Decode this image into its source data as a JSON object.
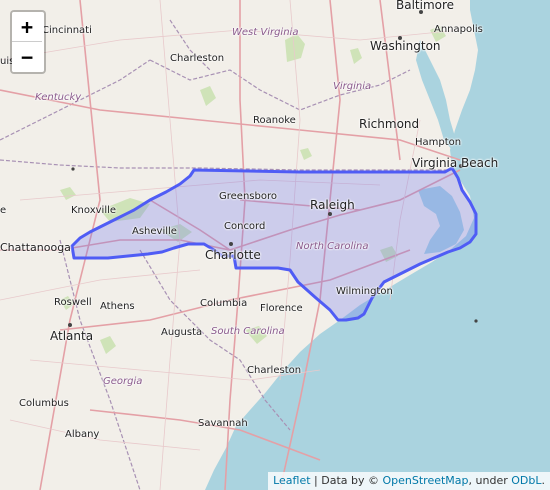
{
  "map": {
    "colors": {
      "land": "#f2efe9",
      "water": "#aad3df",
      "highlight_fill": "#6b73f0",
      "highlight_stroke": "#4f5cf5",
      "interstate": "#e89aa0",
      "state_border": "#a08ab0",
      "green": "#c8e0b4"
    },
    "controls": {
      "zoom_in": "+",
      "zoom_out": "−"
    },
    "highlighted_region": "North Carolina",
    "labels": {
      "baltimore": "Baltimore",
      "annapolis": "Annapolis",
      "washington": "Washington",
      "cincinnati": "Cincinnati",
      "west_virginia": "West Virginia",
      "charleston_wv": "Charleston",
      "kentucky": "Kentucky",
      "virginia": "Virginia",
      "roanoke": "Roanoke",
      "richmond": "Richmond",
      "hampton": "Hampton",
      "virginia_beach": "Virginia Beach",
      "greensboro": "Greensboro",
      "knoxville": "Knoxville",
      "raleigh": "Raleigh",
      "asheville": "Asheville",
      "concord": "Concord",
      "north_carolina": "North Carolina",
      "chattanooga": "Chattanooga",
      "charlotte": "Charlotte",
      "roswell": "Roswell",
      "athens": "Athens",
      "columbia": "Columbia",
      "florence": "Florence",
      "wilmington": "Wilmington",
      "atlanta": "Atlanta",
      "augusta": "Augusta",
      "south_carolina": "South Carolina",
      "georgia": "Georgia",
      "charleston_sc": "Charleston",
      "columbus": "Columbus",
      "savannah": "Savannah",
      "albany": "Albany",
      "edge_top": "uis",
      "edge_left": "e"
    },
    "attribution": {
      "leaflet": "Leaflet",
      "sep1": " | Data by © ",
      "osm": "OpenStreetMap",
      "sep2": ", under ",
      "odbl": "ODbL",
      "end": "."
    }
  }
}
